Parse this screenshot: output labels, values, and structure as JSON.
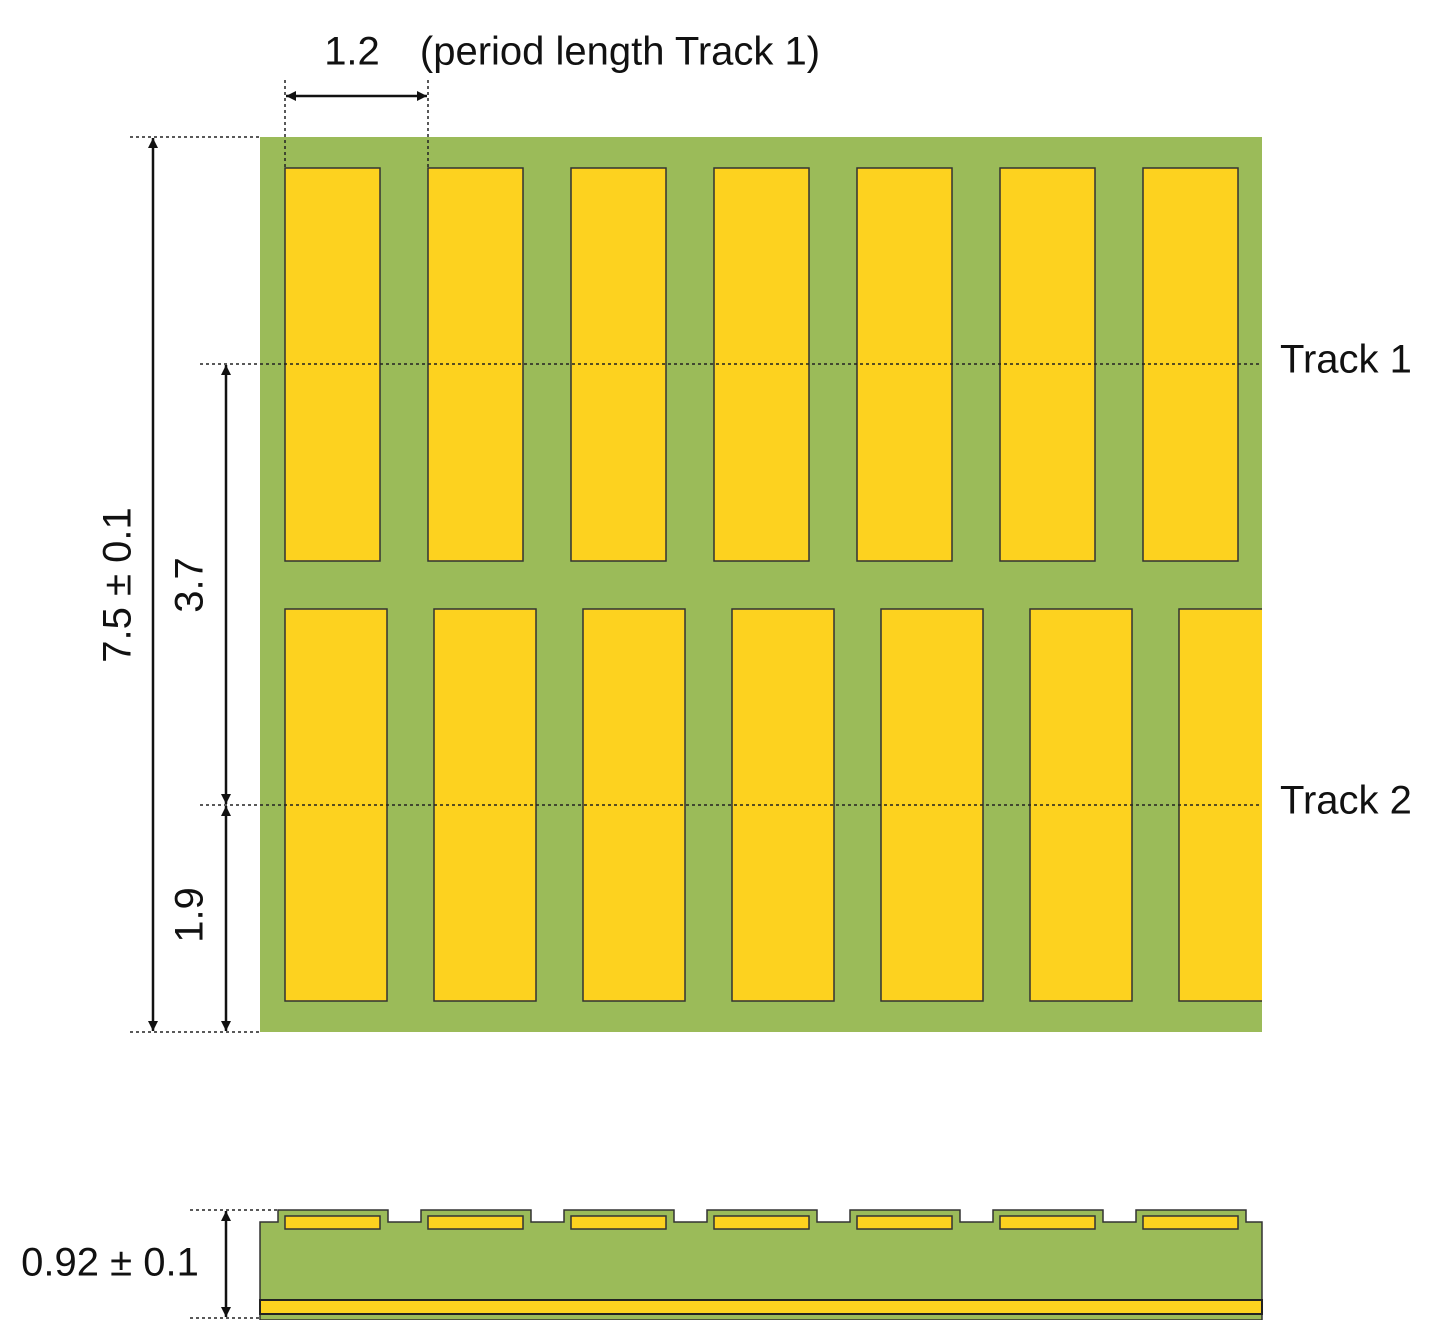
{
  "dimensions": {
    "period": "1.2",
    "period_note": "(period length Track 1)",
    "width": "7.5 ± 0.1",
    "track1_offset": "3.7",
    "track2_offset": "1.9",
    "thickness": "0.92 ± 0.1"
  },
  "tracks": {
    "track1": "Track 1",
    "track2": "Track 2"
  }
}
